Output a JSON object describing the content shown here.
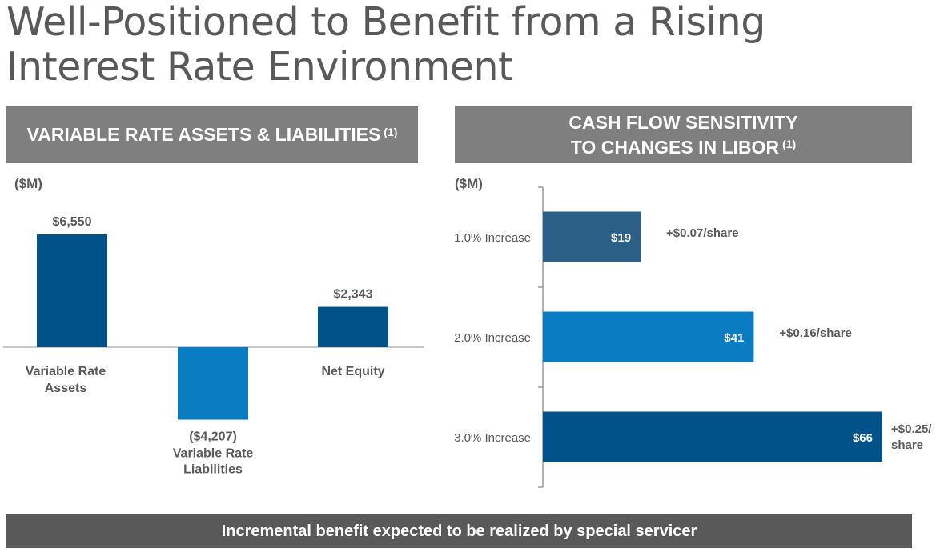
{
  "title": {
    "line1": "Well-Positioned to Benefit from a Rising",
    "line2": "Interest Rate Environment"
  },
  "left_panel": {
    "header": "VARIABLE RATE ASSETS & LIABILITIES",
    "footnote": "(1)",
    "unit": "($M)"
  },
  "right_panel": {
    "header_line1": "CASH FLOW SENSITIVITY",
    "header_line2": "TO CHANGES IN LIBOR",
    "footnote": "(1)",
    "unit": "($M)"
  },
  "footer": "Incremental benefit expected to be realized by special servicer",
  "colors": {
    "dark_blue": "#005288",
    "light_blue": "#0a7cc1",
    "mid_blue": "#2b5f86",
    "header_gray": "#7f7f7f",
    "footer_gray": "#595959"
  },
  "chart_data": [
    {
      "type": "bar",
      "orientation": "vertical",
      "categories": [
        "Variable Rate Assets",
        "Variable Rate Liabilities",
        "Net Equity"
      ],
      "category_lines": [
        [
          "Variable Rate",
          "Assets"
        ],
        [
          "Variable Rate",
          "Liabilities"
        ],
        [
          "Net Equity"
        ]
      ],
      "values": [
        6550,
        -4207,
        2343
      ],
      "value_labels": [
        "$6,550",
        "($4,207)",
        "$2,343"
      ],
      "bar_colors": [
        "#005288",
        "#0a7cc1",
        "#005288"
      ],
      "ylim": [
        -7000,
        11000
      ],
      "title": "VARIABLE RATE ASSETS & LIABILITIES",
      "ylabel": "($M)"
    },
    {
      "type": "bar",
      "orientation": "horizontal",
      "categories": [
        "1.0% Increase",
        "2.0% Increase",
        "3.0% Increase"
      ],
      "values": [
        19,
        41,
        66
      ],
      "value_labels": [
        "$19",
        "$41",
        "$66"
      ],
      "annotations": [
        [
          "+$0.07/share"
        ],
        [
          "+$0.16/share"
        ],
        [
          "+$0.25/",
          "share"
        ]
      ],
      "bar_colors": [
        "#2b5f86",
        "#0a7cc1",
        "#005288"
      ],
      "xlim": [
        0,
        70
      ],
      "title": "CASH FLOW SENSITIVITY TO CHANGES IN LIBOR",
      "xlabel": "($M)"
    }
  ]
}
